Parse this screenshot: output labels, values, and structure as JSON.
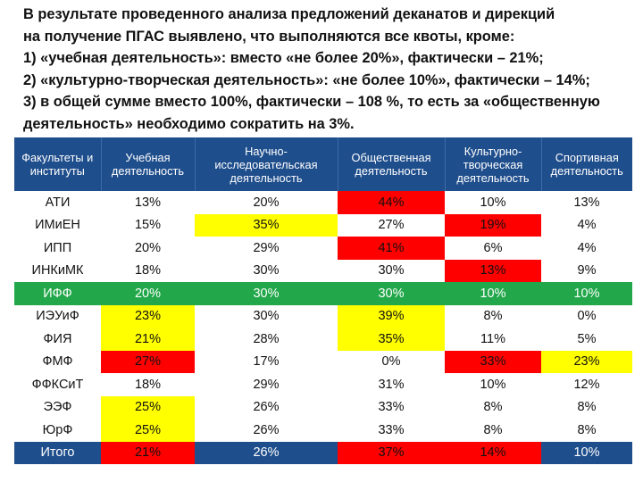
{
  "intro_lines": [
    "В результате проведенного анализа предложений деканатов и дирекций",
    "на получение ПГАС выявлено, что выполняются все квоты, кроме:",
    "1) «учебная деятельность»: вместо «не более 20%», фактически – 21%;",
    "2) «культурно-творческая деятельность»: «не более 10%», фактически – 14%;",
    "3) в общей сумме вместо 100%, фактически – 108 %, то есть за «общественную",
    "деятельность» необходимо сократить на 3%."
  ],
  "colors": {
    "header_blue": "#1f4e8c",
    "highlight_yellow": "#ffff00",
    "highlight_red": "#ff0000",
    "row_green": "#22a84a"
  },
  "table": {
    "headers": [
      "Факультеты и институты",
      "Учебная деятельность",
      "Научно-исследовательская деятельность",
      "Общественная деятельность",
      "Культурно-творческая деятельность",
      "Спортивная деятельность"
    ],
    "rows": [
      {
        "name": "АТИ",
        "style": "",
        "cells": [
          "13%",
          "20%",
          "44%",
          "10%",
          "13%"
        ],
        "hl": [
          "",
          "",
          "r",
          "",
          ""
        ]
      },
      {
        "name": "ИМиЕН",
        "style": "",
        "cells": [
          "15%",
          "35%",
          "27%",
          "19%",
          "4%"
        ],
        "hl": [
          "",
          "y",
          "",
          "r",
          ""
        ]
      },
      {
        "name": "ИПП",
        "style": "",
        "cells": [
          "20%",
          "29%",
          "41%",
          "6%",
          "4%"
        ],
        "hl": [
          "",
          "",
          "r",
          "",
          ""
        ]
      },
      {
        "name": "ИНКиМК",
        "style": "",
        "cells": [
          "18%",
          "30%",
          "30%",
          "13%",
          "9%"
        ],
        "hl": [
          "",
          "",
          "",
          "r",
          ""
        ]
      },
      {
        "name": "ИФФ",
        "style": "green",
        "cells": [
          "20%",
          "30%",
          "30%",
          "10%",
          "10%"
        ],
        "hl": [
          "",
          "",
          "",
          "",
          ""
        ]
      },
      {
        "name": "ИЭУиФ",
        "style": "",
        "cells": [
          "23%",
          "30%",
          "39%",
          "8%",
          "0%"
        ],
        "hl": [
          "y",
          "",
          "y",
          "",
          ""
        ]
      },
      {
        "name": "ФИЯ",
        "style": "",
        "cells": [
          "21%",
          "28%",
          "35%",
          "11%",
          "5%"
        ],
        "hl": [
          "y",
          "",
          "y",
          "",
          ""
        ]
      },
      {
        "name": "ФМФ",
        "style": "",
        "cells": [
          "27%",
          "17%",
          "0%",
          "33%",
          "23%"
        ],
        "hl": [
          "r",
          "",
          "",
          "r",
          "y"
        ]
      },
      {
        "name": "ФФКСиТ",
        "style": "",
        "cells": [
          "18%",
          "29%",
          "31%",
          "10%",
          "12%"
        ],
        "hl": [
          "",
          "",
          "",
          "",
          ""
        ]
      },
      {
        "name": "ЭЭФ",
        "style": "",
        "cells": [
          "25%",
          "26%",
          "33%",
          "8%",
          "8%"
        ],
        "hl": [
          "y",
          "",
          "",
          "",
          ""
        ]
      },
      {
        "name": "ЮрФ",
        "style": "",
        "cells": [
          "25%",
          "26%",
          "33%",
          "8%",
          "8%"
        ],
        "hl": [
          "y",
          "",
          "",
          "",
          ""
        ]
      },
      {
        "name": "Итого",
        "style": "blue",
        "cells": [
          "21%",
          "26%",
          "37%",
          "14%",
          "10%"
        ],
        "hl": [
          "r",
          "",
          "r",
          "r",
          ""
        ]
      }
    ]
  }
}
